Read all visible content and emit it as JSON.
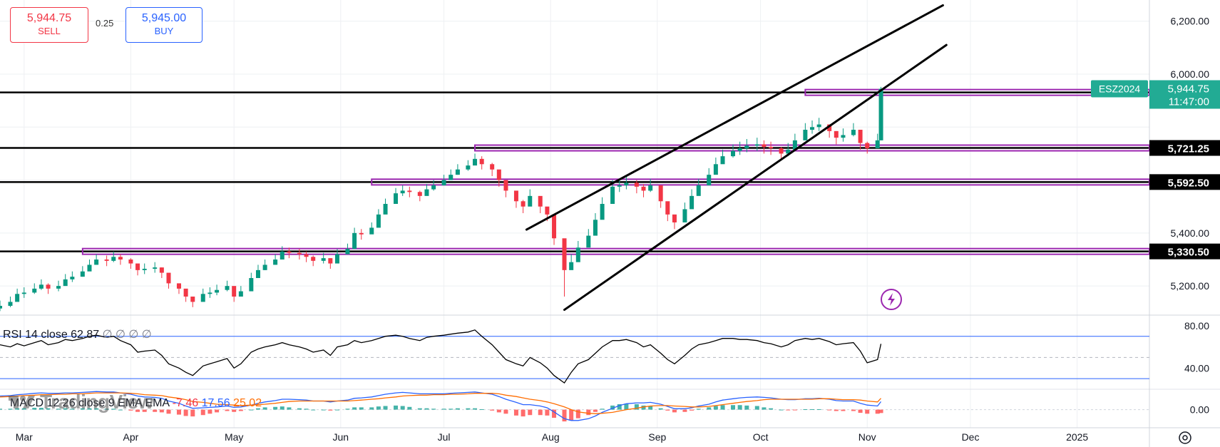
{
  "order_panel": {
    "sell_price": "5,944.75",
    "sell_label": "SELL",
    "spread": "0.25",
    "buy_price": "5,945.00",
    "buy_label": "BUY"
  },
  "watermark": "TradingView",
  "chart_data": {
    "type": "candlestick",
    "symbol": "ESZ2024",
    "last_price": "5,944.75",
    "countdown": "11:47:00",
    "x_axis": {
      "labels": [
        "Mar",
        "Apr",
        "May",
        "Jun",
        "Jul",
        "Aug",
        "Sep",
        "Oct",
        "Nov",
        "Dec",
        "2025"
      ],
      "range": [
        "2024-02-23",
        "2025-01-22"
      ]
    },
    "y_axis": {
      "ticks": [
        5200,
        5400,
        5600,
        5800,
        6000,
        6200
      ],
      "tick_labels": [
        "5,200.00",
        "5,400.00",
        "",
        "",
        "6,000.00",
        "6,200.00"
      ],
      "range": [
        5090,
        6280
      ]
    },
    "horizontal_levels": [
      {
        "label": "5,931.00",
        "value": 5931.0,
        "black_from": "2024-02-23",
        "purple_from": "2024-10-14"
      },
      {
        "label": "5,721.25",
        "value": 5721.25,
        "black_from": "2024-02-23",
        "purple_from": "2024-07-10"
      },
      {
        "label": "5,592.50",
        "value": 5592.5,
        "black_from": "2024-02-23",
        "purple_from": "2024-06-10"
      },
      {
        "label": "5,330.50",
        "value": 5330.5,
        "black_from": "2024-02-23",
        "purple_from": "2024-03-18"
      }
    ],
    "trend_channel": [
      {
        "from": [
          "2024-07-25",
          5413
        ],
        "to": [
          "2024-11-23",
          6260
        ]
      },
      {
        "from": [
          "2024-08-05",
          5110
        ],
        "to": [
          "2024-11-24",
          6110
        ]
      }
    ],
    "candles": {
      "dates": [
        "02-23",
        "02-26",
        "02-28",
        "03-01",
        "03-04",
        "03-06",
        "03-08",
        "03-11",
        "03-13",
        "03-15",
        "03-18",
        "03-20",
        "03-22",
        "03-25",
        "03-27",
        "03-29",
        "04-01",
        "04-03",
        "04-05",
        "04-08",
        "04-10",
        "04-12",
        "04-15",
        "04-17",
        "04-19",
        "04-22",
        "04-24",
        "04-26",
        "04-29",
        "05-01",
        "05-03",
        "05-06",
        "05-08",
        "05-10",
        "05-13",
        "05-15",
        "05-17",
        "05-20",
        "05-22",
        "05-24",
        "05-27",
        "05-29",
        "05-31",
        "06-03",
        "06-05",
        "06-07",
        "06-10",
        "06-12",
        "06-14",
        "06-17",
        "06-19",
        "06-21",
        "06-24",
        "06-26",
        "06-28",
        "07-01",
        "07-03",
        "07-05",
        "07-08",
        "07-10",
        "07-12",
        "07-15",
        "07-17",
        "07-19",
        "07-22",
        "07-24",
        "07-26",
        "07-29",
        "07-31",
        "08-02",
        "08-05",
        "08-07",
        "08-09",
        "08-12",
        "08-14",
        "08-16",
        "08-19",
        "08-21",
        "08-23",
        "08-26",
        "08-28",
        "08-30",
        "09-02",
        "09-04",
        "09-06",
        "09-09",
        "09-11",
        "09-13",
        "09-16",
        "09-18",
        "09-20",
        "09-23",
        "09-25",
        "09-27",
        "09-30",
        "10-02",
        "10-04",
        "10-07",
        "10-09",
        "10-11",
        "10-14",
        "10-16",
        "10-18",
        "10-21",
        "10-23",
        "10-25",
        "10-28",
        "10-30",
        "11-01",
        "11-04",
        "11-05"
      ],
      "close": [
        5125,
        5140,
        5170,
        5175,
        5190,
        5205,
        5190,
        5200,
        5225,
        5235,
        5255,
        5280,
        5300,
        5295,
        5310,
        5300,
        5285,
        5260,
        5265,
        5270,
        5250,
        5210,
        5190,
        5160,
        5140,
        5170,
        5175,
        5185,
        5200,
        5160,
        5180,
        5230,
        5260,
        5280,
        5300,
        5330,
        5325,
        5320,
        5310,
        5295,
        5305,
        5285,
        5320,
        5340,
        5400,
        5395,
        5420,
        5470,
        5510,
        5550,
        5560,
        5555,
        5540,
        5565,
        5580,
        5600,
        5620,
        5640,
        5655,
        5680,
        5660,
        5640,
        5600,
        5560,
        5520,
        5500,
        5540,
        5500,
        5470,
        5380,
        5260,
        5290,
        5345,
        5390,
        5450,
        5510,
        5575,
        5580,
        5590,
        5575,
        5560,
        5580,
        5520,
        5470,
        5440,
        5490,
        5540,
        5580,
        5620,
        5660,
        5690,
        5710,
        5720,
        5730,
        5735,
        5725,
        5720,
        5700,
        5715,
        5750,
        5790,
        5800,
        5810,
        5785,
        5760,
        5770,
        5790,
        5740,
        5720,
        5750,
        5944.75
      ],
      "high": [
        5145,
        5160,
        5190,
        5195,
        5210,
        5225,
        5210,
        5220,
        5245,
        5255,
        5275,
        5300,
        5320,
        5315,
        5330,
        5320,
        5305,
        5280,
        5285,
        5290,
        5270,
        5230,
        5210,
        5180,
        5160,
        5190,
        5195,
        5205,
        5220,
        5180,
        5200,
        5250,
        5280,
        5300,
        5320,
        5350,
        5345,
        5340,
        5330,
        5315,
        5325,
        5305,
        5340,
        5360,
        5420,
        5415,
        5440,
        5490,
        5530,
        5570,
        5580,
        5575,
        5560,
        5585,
        5600,
        5620,
        5640,
        5660,
        5675,
        5700,
        5690,
        5665,
        5625,
        5585,
        5545,
        5525,
        5565,
        5525,
        5495,
        5405,
        5290,
        5320,
        5370,
        5415,
        5475,
        5535,
        5600,
        5605,
        5615,
        5600,
        5585,
        5605,
        5545,
        5495,
        5465,
        5515,
        5565,
        5605,
        5645,
        5685,
        5715,
        5735,
        5745,
        5755,
        5760,
        5750,
        5745,
        5725,
        5740,
        5775,
        5815,
        5825,
        5835,
        5810,
        5785,
        5795,
        5815,
        5765,
        5745,
        5775,
        5952
      ],
      "low": [
        5105,
        5120,
        5150,
        5155,
        5170,
        5185,
        5170,
        5180,
        5205,
        5215,
        5235,
        5260,
        5280,
        5275,
        5290,
        5280,
        5265,
        5240,
        5245,
        5250,
        5230,
        5190,
        5170,
        5140,
        5120,
        5150,
        5155,
        5165,
        5180,
        5140,
        5160,
        5210,
        5240,
        5260,
        5280,
        5310,
        5305,
        5300,
        5290,
        5275,
        5285,
        5265,
        5300,
        5320,
        5380,
        5375,
        5400,
        5450,
        5490,
        5530,
        5540,
        5535,
        5520,
        5545,
        5560,
        5580,
        5600,
        5620,
        5635,
        5660,
        5640,
        5615,
        5575,
        5535,
        5495,
        5475,
        5515,
        5475,
        5445,
        5355,
        5160,
        5265,
        5320,
        5365,
        5425,
        5485,
        5550,
        5555,
        5565,
        5550,
        5535,
        5555,
        5495,
        5445,
        5415,
        5465,
        5515,
        5555,
        5595,
        5635,
        5665,
        5685,
        5695,
        5705,
        5710,
        5700,
        5695,
        5675,
        5690,
        5725,
        5765,
        5775,
        5785,
        5760,
        5735,
        5745,
        5765,
        5715,
        5700,
        5725,
        5750
      ],
      "open": [
        5115,
        5125,
        5140,
        5170,
        5175,
        5190,
        5205,
        5190,
        5200,
        5225,
        5235,
        5255,
        5280,
        5300,
        5295,
        5310,
        5300,
        5285,
        5260,
        5265,
        5270,
        5250,
        5210,
        5190,
        5160,
        5140,
        5170,
        5175,
        5185,
        5200,
        5160,
        5180,
        5230,
        5260,
        5280,
        5300,
        5330,
        5325,
        5320,
        5310,
        5295,
        5305,
        5285,
        5320,
        5340,
        5400,
        5395,
        5420,
        5470,
        5510,
        5550,
        5560,
        5555,
        5540,
        5565,
        5580,
        5600,
        5620,
        5640,
        5655,
        5680,
        5660,
        5640,
        5600,
        5560,
        5520,
        5500,
        5540,
        5500,
        5470,
        5380,
        5260,
        5290,
        5345,
        5390,
        5450,
        5510,
        5575,
        5580,
        5590,
        5575,
        5560,
        5580,
        5520,
        5470,
        5440,
        5490,
        5540,
        5580,
        5620,
        5660,
        5690,
        5710,
        5720,
        5730,
        5735,
        5725,
        5720,
        5700,
        5715,
        5750,
        5790,
        5800,
        5810,
        5785,
        5760,
        5770,
        5790,
        5740,
        5720,
        5750
      ]
    },
    "rsi": {
      "label": "RSI 14 close",
      "value_label": "62.87",
      "placeholders": [
        "∅",
        "∅",
        "∅",
        "∅"
      ],
      "ticks": [
        80,
        40
      ],
      "tick_labels": [
        "80.00",
        "40.00"
      ],
      "bands": [
        70,
        30
      ],
      "midline": 50,
      "range": [
        20,
        90
      ],
      "values": [
        62,
        60,
        63,
        61,
        64,
        66,
        62,
        64,
        67,
        66,
        68,
        70,
        71,
        69,
        70,
        66,
        62,
        55,
        56,
        57,
        52,
        44,
        40,
        36,
        33,
        42,
        44,
        46,
        49,
        40,
        44,
        55,
        58,
        60,
        62,
        64,
        62,
        60,
        58,
        55,
        57,
        52,
        60,
        62,
        66,
        64,
        66,
        68,
        70,
        71,
        70,
        68,
        66,
        69,
        70,
        71,
        72,
        73,
        74,
        76,
        70,
        62,
        55,
        48,
        44,
        42,
        50,
        45,
        40,
        33,
        26,
        36,
        44,
        48,
        54,
        60,
        66,
        66,
        67,
        64,
        60,
        62,
        54,
        48,
        44,
        52,
        58,
        62,
        64,
        66,
        68,
        68,
        67,
        67,
        66,
        64,
        63,
        60,
        62,
        66,
        68,
        67,
        68,
        65,
        62,
        63,
        64,
        56,
        45,
        48,
        62.87
      ]
    },
    "macd": {
      "label": "MACD 12 26 close 9 EMA EMA",
      "value_labels": [
        "-7.46",
        "17.56",
        "25.02"
      ],
      "ticks": [
        0
      ],
      "tick_labels": [
        "0.00"
      ],
      "range": [
        -40,
        45
      ],
      "macd_values": [
        30,
        31,
        33,
        34,
        36,
        37,
        36,
        36,
        37,
        37,
        38,
        39,
        40,
        39,
        39,
        37,
        34,
        30,
        28,
        27,
        25,
        19,
        14,
        8,
        3,
        4,
        5,
        6,
        8,
        5,
        6,
        10,
        14,
        17,
        20,
        23,
        23,
        22,
        21,
        19,
        19,
        17,
        19,
        21,
        25,
        26,
        28,
        31,
        34,
        37,
        38,
        37,
        35,
        35,
        35,
        35,
        36,
        37,
        38,
        39,
        37,
        34,
        29,
        23,
        16,
        11,
        11,
        8,
        4,
        -5,
        -20,
        -24,
        -24,
        -20,
        -14,
        -6,
        3,
        9,
        13,
        15,
        15,
        16,
        12,
        7,
        2,
        2,
        4,
        8,
        12,
        17,
        21,
        24,
        26,
        27,
        28,
        27,
        26,
        23,
        22,
        22,
        24,
        24,
        25,
        23,
        20,
        19,
        19,
        14,
        10,
        8,
        17.56
      ],
      "signal_values": [
        28,
        29,
        30,
        31,
        32,
        33,
        33,
        34,
        34,
        35,
        35,
        36,
        37,
        37,
        37,
        37,
        36,
        35,
        33,
        32,
        31,
        28,
        25,
        22,
        18,
        16,
        14,
        12,
        11,
        10,
        9,
        10,
        11,
        12,
        14,
        16,
        18,
        19,
        19,
        19,
        19,
        19,
        19,
        19,
        20,
        21,
        23,
        24,
        26,
        28,
        30,
        31,
        32,
        32,
        33,
        33,
        34,
        34,
        35,
        36,
        36,
        36,
        35,
        32,
        29,
        26,
        23,
        20,
        17,
        13,
        6,
        0,
        -5,
        -8,
        -9,
        -8,
        -6,
        -3,
        0,
        3,
        6,
        8,
        9,
        9,
        8,
        7,
        6,
        6,
        7,
        9,
        11,
        14,
        16,
        18,
        20,
        22,
        23,
        23,
        23,
        23,
        23,
        23,
        24,
        24,
        23,
        22,
        22,
        21,
        19,
        17,
        25.02
      ],
      "histogram_values": [
        2,
        2,
        3,
        3,
        4,
        4,
        3,
        2,
        3,
        2,
        3,
        3,
        3,
        2,
        2,
        0,
        -2,
        -5,
        -5,
        -5,
        -6,
        -9,
        -11,
        -14,
        -15,
        -12,
        -9,
        -6,
        -3,
        -5,
        -3,
        0,
        3,
        5,
        6,
        7,
        5,
        3,
        2,
        0,
        0,
        -2,
        0,
        2,
        5,
        5,
        5,
        7,
        8,
        9,
        8,
        6,
        3,
        3,
        2,
        2,
        2,
        3,
        3,
        3,
        1,
        -2,
        -6,
        -9,
        -13,
        -15,
        -12,
        -12,
        -13,
        -18,
        -26,
        -24,
        -19,
        -12,
        -5,
        2,
        9,
        12,
        13,
        12,
        9,
        8,
        3,
        -2,
        -6,
        -5,
        -2,
        2,
        5,
        8,
        10,
        10,
        10,
        9,
        8,
        5,
        3,
        0,
        -1,
        -1,
        1,
        1,
        1,
        -1,
        -3,
        -3,
        -3,
        -7,
        -9,
        -9,
        -7.46
      ]
    },
    "colors": {
      "up": "#089981",
      "down": "#f23645",
      "purple": "#9c27b0",
      "rsi_band": "#2962ff",
      "macd_line": "#2962ff",
      "signal_line": "#ff6d00",
      "symbol_tag": "#22ab94"
    }
  }
}
